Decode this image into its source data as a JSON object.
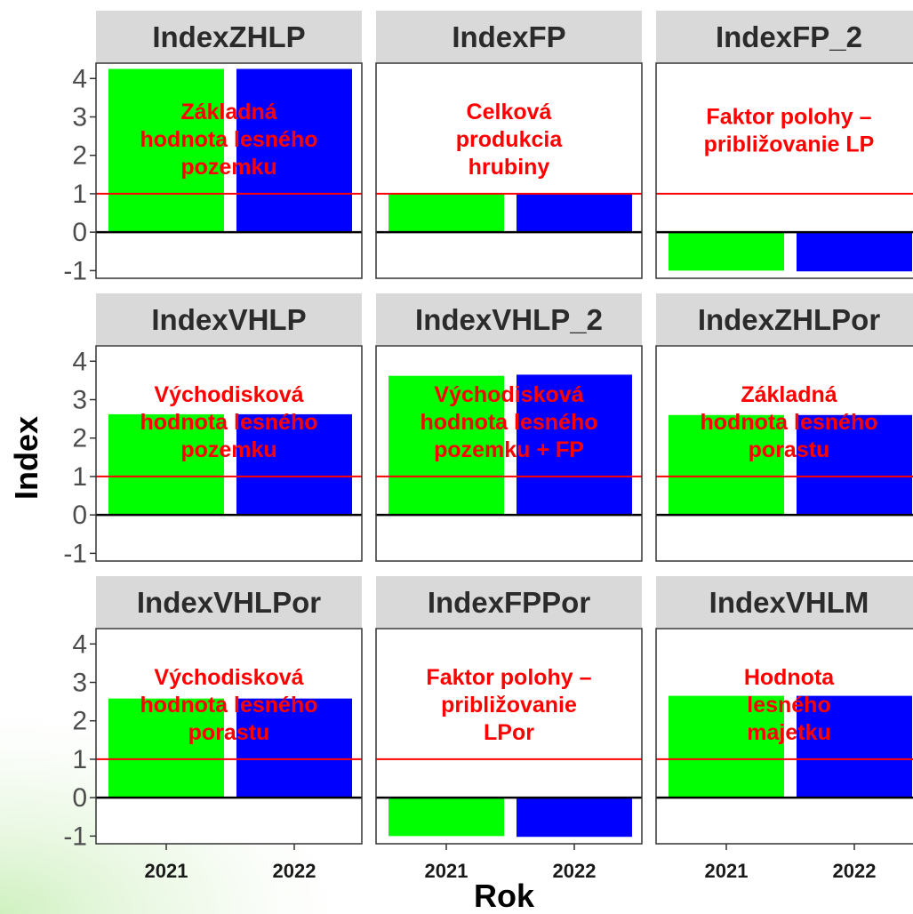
{
  "chart_data": {
    "type": "bar",
    "facet_layout": "3x3 grid",
    "xlabel": "Rok",
    "ylabel": "Index",
    "ylim": [
      -1.2,
      4.4
    ],
    "yticks": [
      -1,
      0,
      1,
      2,
      3,
      4
    ],
    "categories": [
      "2021",
      "2022"
    ],
    "reference_lines": [
      {
        "y": 0,
        "color": "#000000"
      },
      {
        "y": 1,
        "color": "#ff0000"
      }
    ],
    "bar_colors": [
      "#00ff00",
      "#0000ff"
    ],
    "grid": false,
    "legend": "none",
    "panels": [
      {
        "title": "IndexZHLP",
        "values": [
          4.25,
          4.25
        ],
        "annotation": [
          "Základná",
          "hodnota lesného",
          "pozemku"
        ]
      },
      {
        "title": "IndexFP",
        "values": [
          1.0,
          1.0
        ],
        "annotation": [
          "Celková",
          "produkcia",
          "hrubiny"
        ]
      },
      {
        "title": "IndexFP_2",
        "values": [
          -1.0,
          -1.02
        ],
        "annotation": [
          "Faktor polohy –",
          "približovanie LP"
        ]
      },
      {
        "title": "IndexVHLP",
        "values": [
          2.62,
          2.62
        ],
        "annotation": [
          "Východisková",
          "hodnota lesného",
          "pozemku"
        ]
      },
      {
        "title": "IndexVHLP_2",
        "values": [
          3.62,
          3.65
        ],
        "annotation": [
          "Východisková",
          "hodnota lesného",
          "pozemku + FP"
        ]
      },
      {
        "title": "IndexZHLPor",
        "values": [
          2.6,
          2.6
        ],
        "annotation": [
          "Základná",
          "hodnota lesného",
          "porastu"
        ]
      },
      {
        "title": "IndexVHLPor",
        "values": [
          2.58,
          2.58
        ],
        "annotation": [
          "Východisková",
          "hodnota lesného",
          "porastu"
        ]
      },
      {
        "title": "IndexFPPor",
        "values": [
          -1.0,
          -1.02
        ],
        "annotation": [
          "Faktor polohy –",
          "približovanie",
          "LPor"
        ]
      },
      {
        "title": "IndexVHLM",
        "values": [
          2.65,
          2.65
        ],
        "annotation": [
          "Hodnota",
          "lesného",
          "majetku"
        ]
      }
    ]
  }
}
